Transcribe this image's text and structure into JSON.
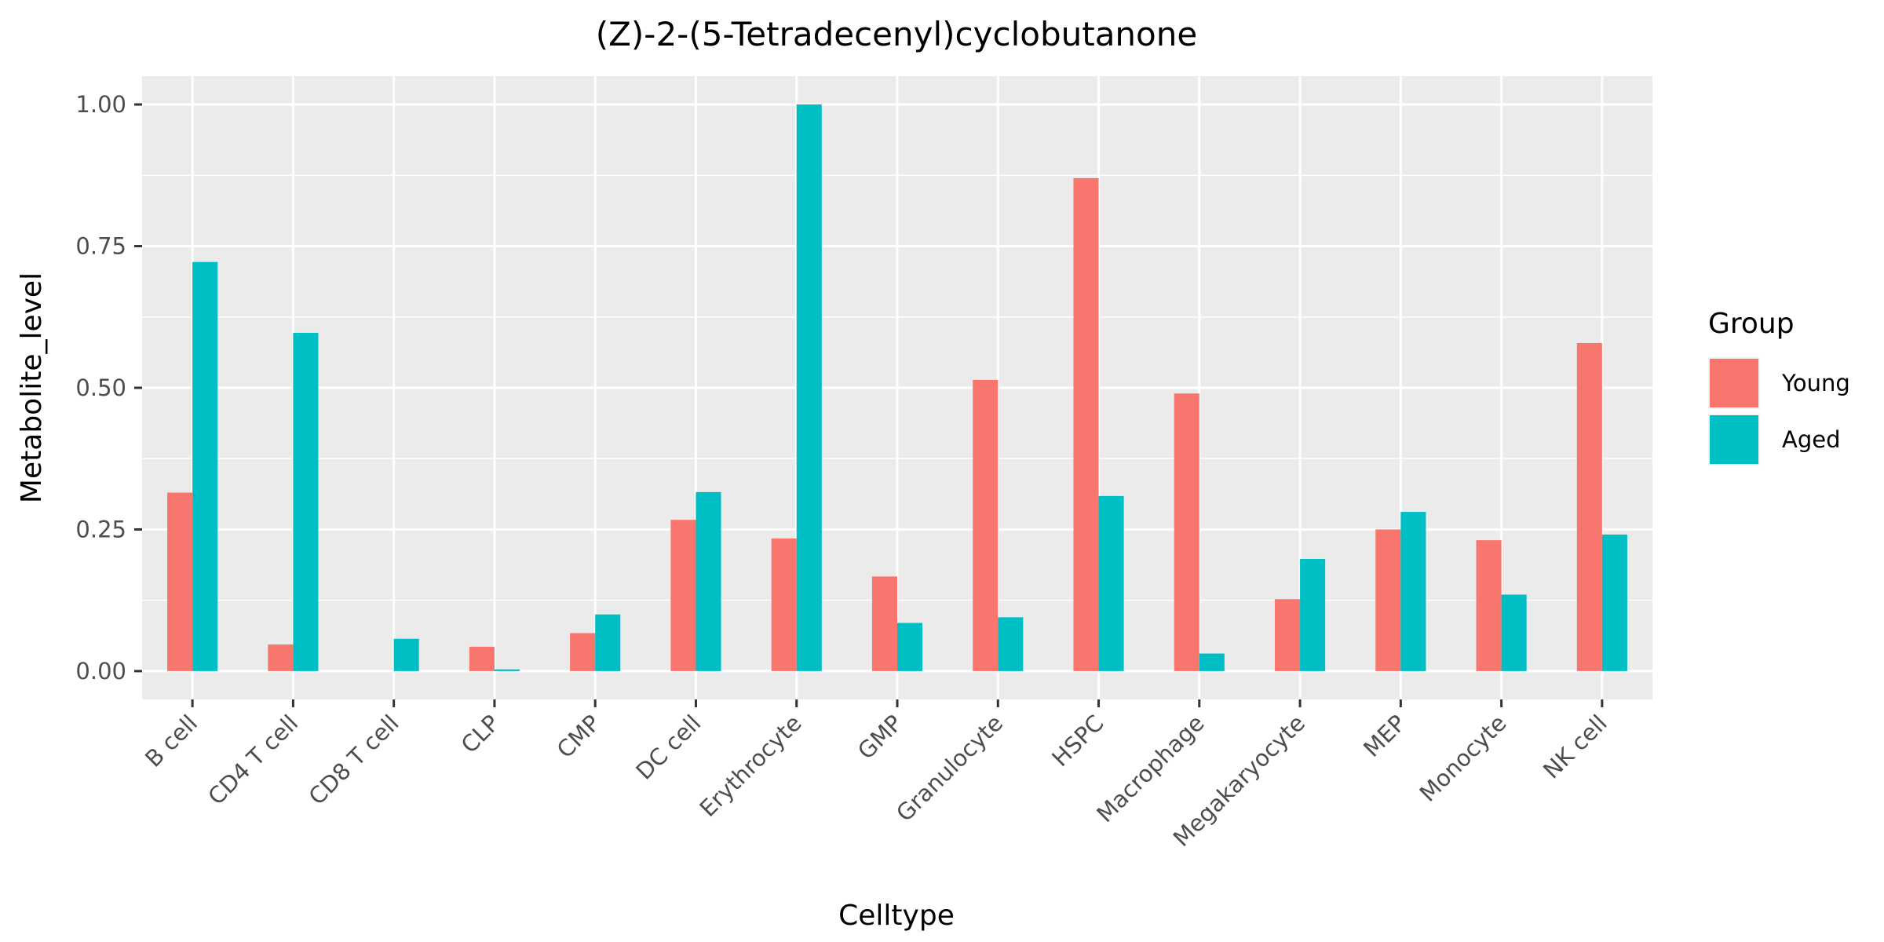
{
  "chart_data": {
    "type": "bar",
    "title": "(Z)-2-(5-Tetradecenyl)cyclobutanone",
    "xlabel": "Celltype",
    "ylabel": "Metabolite_level",
    "ylim": [
      -0.05,
      1.05
    ],
    "yticks": [
      0.0,
      0.25,
      0.5,
      0.75,
      1.0
    ],
    "ytick_labels": [
      "0.00",
      "0.25",
      "0.50",
      "0.75",
      "1.00"
    ],
    "categories": [
      "B cell",
      "CD4 T cell",
      "CD8 T cell",
      "CLP",
      "CMP",
      "DC cell",
      "Erythrocyte",
      "GMP",
      "Granulocyte",
      "HSPC",
      "Macrophage",
      "Megakaryocyte",
      "MEP",
      "Monocyte",
      "NK cell"
    ],
    "series": [
      {
        "name": "Young",
        "color": "#F8766D",
        "values": [
          0.315,
          0.047,
          0.0,
          0.043,
          0.067,
          0.267,
          0.234,
          0.167,
          0.514,
          0.87,
          0.49,
          0.127,
          0.25,
          0.231,
          0.579
        ]
      },
      {
        "name": "Aged",
        "color": "#00BFC4",
        "values": [
          0.722,
          0.597,
          0.057,
          0.003,
          0.1,
          0.316,
          1.0,
          0.085,
          0.095,
          0.309,
          0.031,
          0.198,
          0.281,
          0.135,
          0.241
        ]
      }
    ],
    "legend_title": "Group",
    "legend_position": "right",
    "grid": true,
    "panel_background": "#EBEBEB"
  }
}
